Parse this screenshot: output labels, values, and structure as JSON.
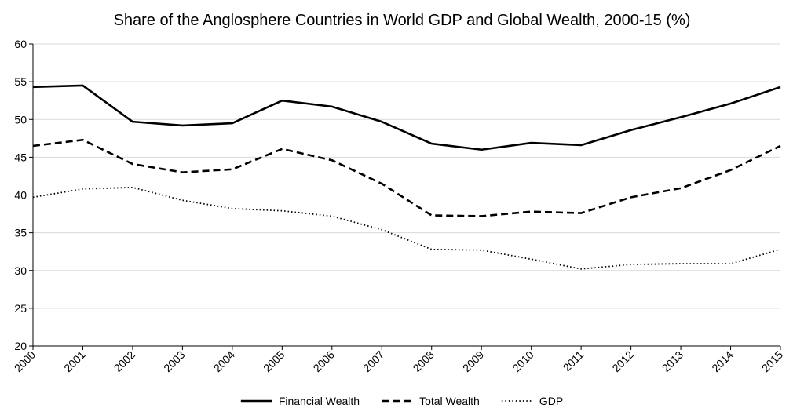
{
  "chart_data": {
    "type": "line",
    "title": "Share of the Anglosphere Countries in World GDP and Global Wealth, 2000-15 (%)",
    "xlabel": "",
    "ylabel": "",
    "categories": [
      "2000",
      "2001",
      "2002",
      "2003",
      "2004",
      "2005",
      "2006",
      "2007",
      "2008",
      "2009",
      "2010",
      "2011",
      "2012",
      "2013",
      "2014",
      "2015"
    ],
    "ylim": [
      20,
      60
    ],
    "yticks": [
      20,
      25,
      30,
      35,
      40,
      45,
      50,
      55,
      60
    ],
    "grid": true,
    "legend_position": "bottom",
    "series": [
      {
        "name": "Financial Wealth",
        "style": "solid",
        "color": "#000000",
        "values": [
          54.3,
          54.5,
          49.7,
          49.2,
          49.5,
          52.5,
          51.7,
          49.7,
          46.8,
          46.0,
          46.9,
          46.6,
          48.6,
          50.3,
          52.1,
          54.3
        ]
      },
      {
        "name": "Total Wealth",
        "style": "dashed",
        "color": "#000000",
        "values": [
          46.5,
          47.3,
          44.1,
          43.0,
          43.4,
          46.1,
          44.6,
          41.5,
          37.3,
          37.2,
          37.8,
          37.6,
          39.7,
          40.9,
          43.3,
          46.5
        ]
      },
      {
        "name": "GDP",
        "style": "dotted",
        "color": "#000000",
        "values": [
          39.7,
          40.8,
          41.0,
          39.3,
          38.2,
          37.9,
          37.2,
          35.4,
          32.8,
          32.7,
          31.5,
          30.2,
          30.8,
          30.9,
          30.9,
          32.8
        ]
      }
    ]
  }
}
